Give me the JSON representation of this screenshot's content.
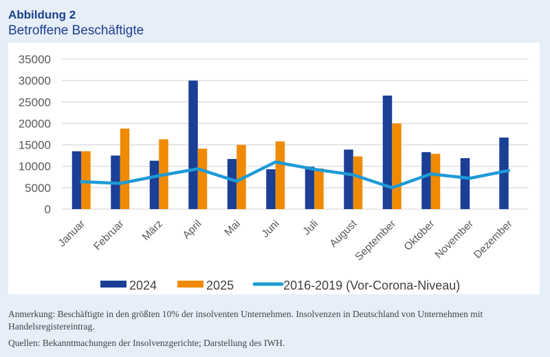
{
  "figure_label": "Abbildung 2",
  "title": "Betroffene Beschäftigte",
  "chart_data": {
    "type": "bar",
    "categories": [
      "Januar",
      "Februar",
      "März",
      "April",
      "Mai",
      "Juni",
      "Juli",
      "August",
      "September",
      "Oktober",
      "November",
      "Dezember"
    ],
    "series": [
      {
        "name": "2024",
        "type": "bar",
        "color": "#1a3f95",
        "values": [
          13500,
          12500,
          11300,
          30000,
          11700,
          9300,
          9900,
          13900,
          26500,
          13300,
          11900,
          16700
        ]
      },
      {
        "name": "2025",
        "type": "bar",
        "color": "#f08a00",
        "values": [
          13500,
          18800,
          16300,
          14100,
          15000,
          15800,
          9500,
          12300,
          20000,
          12900,
          null,
          null
        ]
      },
      {
        "name": "2016-2019 (Vor-Corona-Niveau)",
        "type": "line",
        "color": "#1e9ad6",
        "values": [
          6400,
          6000,
          7800,
          9400,
          6500,
          11000,
          9300,
          8000,
          5000,
          8200,
          7200,
          9000
        ]
      }
    ],
    "ylim": [
      0,
      35000
    ],
    "yticks": [
      0,
      5000,
      10000,
      15000,
      20000,
      25000,
      30000,
      35000
    ],
    "grid": true,
    "legend": "bottom"
  },
  "notes": {
    "remark": "Anmerkung: Beschäftigte in den größten 10% der insolventen Unternehmen. Insolvenzen in Deutschland von Unternehmen mit Handelsregistereintrag.",
    "sources": "Quellen: Bekanntmachungen der Insolvenzgerichte; Darstellung des IWH."
  }
}
